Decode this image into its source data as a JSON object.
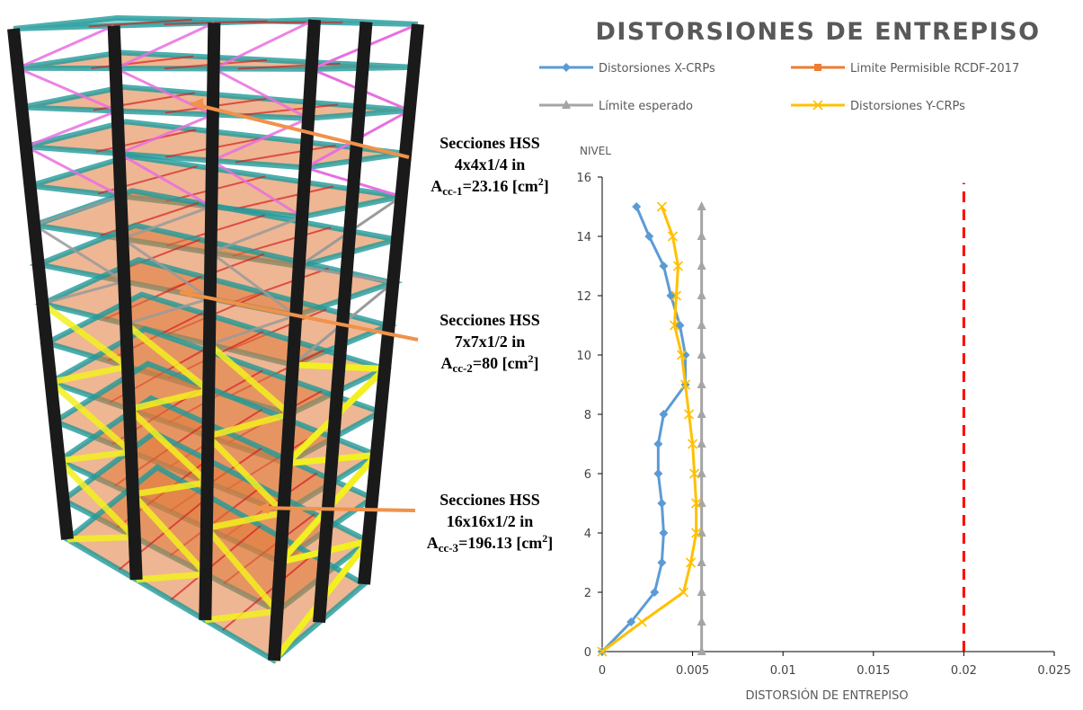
{
  "annotations": [
    {
      "lines": [
        "Secciones HSS",
        "4x4x1/4 in"
      ],
      "area": [
        "A",
        "cc-1",
        "=23.16 [cm",
        "2",
        "]"
      ]
    },
    {
      "lines": [
        "Secciones HSS",
        "7x7x1/2 in"
      ],
      "area": [
        "A",
        "cc-2",
        "=80 [cm",
        "2",
        "]"
      ]
    },
    {
      "lines": [
        "Secciones HSS",
        "16x16x1/2 in"
      ],
      "area": [
        "A",
        "cc-3",
        "=196.13 [cm",
        "2",
        "]"
      ]
    }
  ],
  "chart_data": {
    "type": "line",
    "title": "DISTORSIONES DE ENTREPISO",
    "ylabel": "NIVEL",
    "xlabel": "DISTORSIÓN DE ENTREPISO",
    "xlim": [
      0,
      0.025
    ],
    "xticks": [
      0,
      0.005,
      0.01,
      0.015,
      0.02,
      0.025
    ],
    "ylim": [
      0,
      16
    ],
    "yticks": [
      0,
      2,
      4,
      6,
      8,
      10,
      12,
      14,
      16
    ],
    "levels": [
      0,
      1,
      2,
      3,
      4,
      5,
      6,
      7,
      8,
      9,
      10,
      11,
      12,
      13,
      14,
      15
    ],
    "series": [
      {
        "name": "Distorsiones X-CRPs",
        "color": "#5b9bd5",
        "marker": "diamond",
        "values": [
          0,
          0.0016,
          0.0029,
          0.0033,
          0.0034,
          0.0033,
          0.0031,
          0.0031,
          0.0034,
          0.0046,
          0.0046,
          0.0043,
          0.0038,
          0.0034,
          0.0026,
          0.0019
        ]
      },
      {
        "name": "Limite Permisible RCDF-2017",
        "color": "#ed7d31",
        "line_color": "#ff0000",
        "dashed": true,
        "marker": "square",
        "levels": [
          0,
          15.8
        ],
        "values": [
          0.02,
          0.02
        ]
      },
      {
        "name": "Límite esperado",
        "color": "#a5a5a5",
        "marker": "triangle",
        "values": [
          0.0055,
          0.0055,
          0.0055,
          0.0055,
          0.0055,
          0.0055,
          0.0055,
          0.0055,
          0.0055,
          0.0055,
          0.0055,
          0.0055,
          0.0055,
          0.0055,
          0.0055,
          0.0055
        ]
      },
      {
        "name": "Distorsiones Y-CRPs",
        "color": "#ffc000",
        "marker": "x",
        "values": [
          0,
          0.0022,
          0.0045,
          0.0049,
          0.0052,
          0.0052,
          0.0051,
          0.005,
          0.0048,
          0.0046,
          0.0044,
          0.004,
          0.0041,
          0.0042,
          0.0039,
          0.0033
        ]
      }
    ]
  }
}
